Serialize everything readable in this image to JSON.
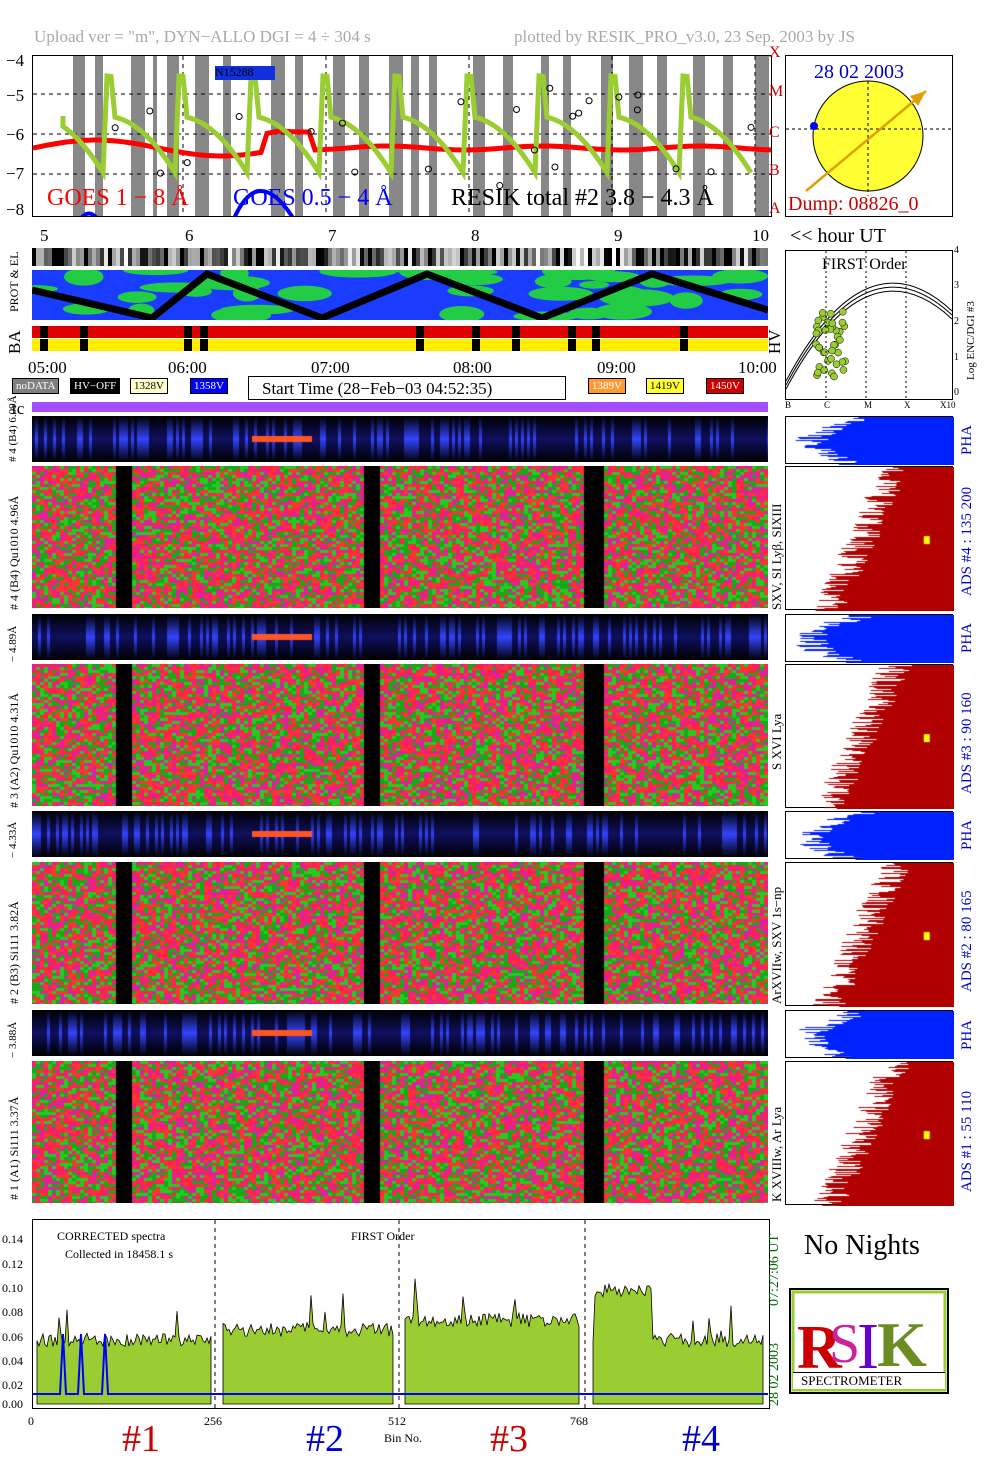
{
  "header": {
    "left": "Upload ver = \"m\", DYN−ALLO DGI =   4 ÷ 304 s",
    "right": "plotted by RESIK_PRO_v3.0, 23 Sep. 2003 by JS"
  },
  "goes_panel": {
    "y_ticks": [
      "−4",
      "−5",
      "−6",
      "−7",
      "−8"
    ],
    "class_letters": [
      "X",
      "M",
      "C",
      "B",
      "A"
    ],
    "legend_goes_long": "GOES 1 − 8 Å",
    "legend_goes_short": "GOES 0.5 − 4 Å",
    "legend_resik": "RESIK total #2  3.8 − 4.3 Å",
    "noaa_tag": "N15288",
    "colors": {
      "goes_long": "#ff0000",
      "goes_short": "#0000ff",
      "resik": "#9acd32"
    }
  },
  "sun_box": {
    "date": "28 02 2003",
    "dump": "Dump: 08826_0",
    "colors": {
      "disk": "#ffff33",
      "arrow": "#e0a000"
    }
  },
  "hour_axis": {
    "ticks": [
      "5",
      "6",
      "7",
      "8",
      "9",
      "10"
    ],
    "label": "<< hour UT"
  },
  "side_labels": {
    "prot_el": "PROT & EL",
    "ba": "BA",
    "hv": "HV",
    "tc": "tc"
  },
  "time_axis": {
    "ticks": [
      "05:00",
      "06:00",
      "07:00",
      "08:00",
      "09:00",
      "10:00"
    ]
  },
  "legend_row": {
    "nodata": "noDATA",
    "hvoff": "HV−OFF",
    "v1328": "1328V",
    "v1358": "1358V",
    "start_time": "Start Time (28−Feb−03 04:52:35)",
    "v1389": "1389V",
    "v1419": "1419V",
    "v1450": "1450V",
    "colors": {
      "v1328": "#ffffcc",
      "v1358": "#0000ff",
      "v1389": "#ff9933",
      "v1419": "#ffff33",
      "v1450": "#cc0000"
    }
  },
  "first_order_plot": {
    "title": "FIRST Order",
    "ylabel": "Log ENC/DGI #3",
    "y_ticks": [
      "4",
      "3",
      "2",
      "1",
      "0"
    ],
    "x_ticks": [
      "B",
      "C",
      "M",
      "X",
      "X10"
    ]
  },
  "channels": [
    {
      "pha_left": "# 4 (B4)  6.09Å",
      "left_label": "# 4 (B4) Qu1010 4.96Å",
      "right_label": "SXV, SI Lyβ, SIXIII",
      "ads_label": "ADS #4 :   135 200"
    },
    {
      "pha_left": "− 4.89Å",
      "left_label": "# 3 (A2) Qu1010 4.31Å",
      "right_label": "S XVI Lya",
      "ads_label": "ADS #3 :   90 160"
    },
    {
      "pha_left": "− 4.33Å",
      "left_label": "# 2 (B3) Si111 3.82Å",
      "right_label": "ArXVIIw, SXV 1s−np",
      "ads_label": "ADS #2 :   80 165"
    },
    {
      "pha_left": "− 3.88Å",
      "left_label": "# 1 (A1) Si111 3.37Å",
      "right_label": "K XVIIIw, Ar Lya",
      "ads_label": "ADS #1 :   55 110"
    }
  ],
  "pha_label": "PHA",
  "spectra_panel": {
    "corrected_label": "CORRECTED spectra",
    "collected_label": "Collected in 18458.1 s",
    "order_label": "FIRST Order",
    "y_ticks": [
      "0.14",
      "0.12",
      "0.10",
      "0.08",
      "0.06",
      "0.04",
      "0.02",
      "0.00"
    ],
    "x_ticks": [
      "0",
      "256",
      "512",
      "768"
    ],
    "xlabel": "Bin No.",
    "right_time": "07:27:06 UT",
    "right_date": "28 02 2003",
    "channel_numbers": [
      "#1",
      "#2",
      "#3",
      "#4"
    ],
    "colors": {
      "fill": "#9acd32",
      "blue": "#0000ff",
      "channel_red": "#cc0000",
      "channel_blue": "#0000cc"
    }
  },
  "no_nights": "No Nights",
  "logo": {
    "spectrometer": "SPECTROMETER",
    "letters": "RESIK"
  }
}
